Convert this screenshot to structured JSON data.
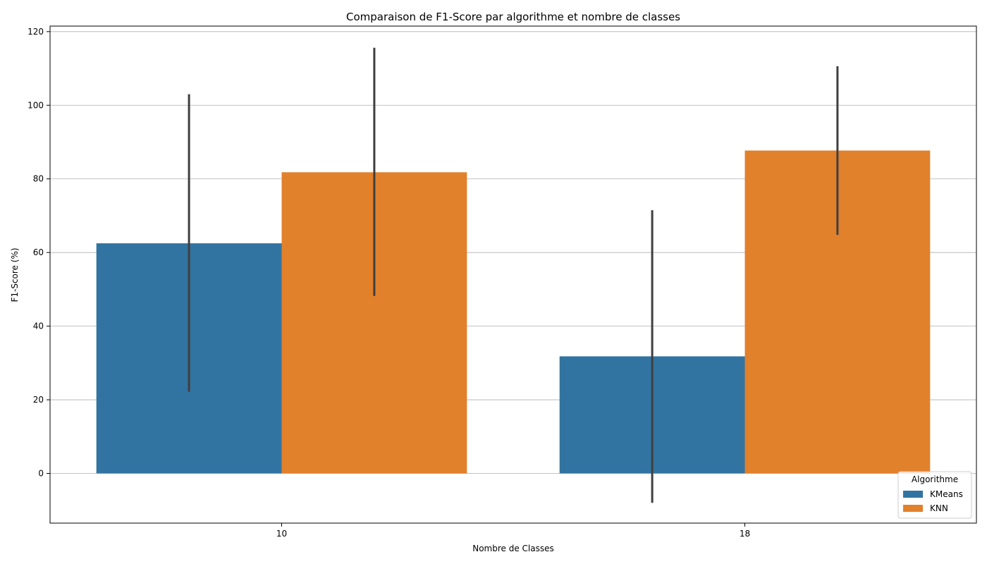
{
  "chart_data": {
    "type": "bar",
    "title": "Comparaison de F1-Score par algorithme et nombre de classes",
    "xlabel": "Nombre de Classes",
    "ylabel": "F1-Score (%)",
    "categories": [
      "10",
      "18"
    ],
    "series": [
      {
        "name": "KMeans",
        "color": "#3274a1",
        "values": [
          62.5,
          31.8
        ],
        "error_low": [
          22.2,
          -8.0
        ],
        "error_high": [
          103.0,
          71.5
        ]
      },
      {
        "name": "KNN",
        "color": "#e1812c",
        "values": [
          81.8,
          87.7
        ],
        "error_low": [
          48.2,
          64.8
        ],
        "error_high": [
          115.6,
          110.6
        ]
      }
    ],
    "ylim": [
      -13.5,
      121.5
    ],
    "yticks": [
      0,
      20,
      40,
      60,
      80,
      100,
      120
    ],
    "ytick_labels": [
      "0",
      "20",
      "40",
      "60",
      "80",
      "100",
      "120"
    ],
    "grid": "y",
    "legend": {
      "title": "Algorithme",
      "position": "bottom-right"
    }
  }
}
